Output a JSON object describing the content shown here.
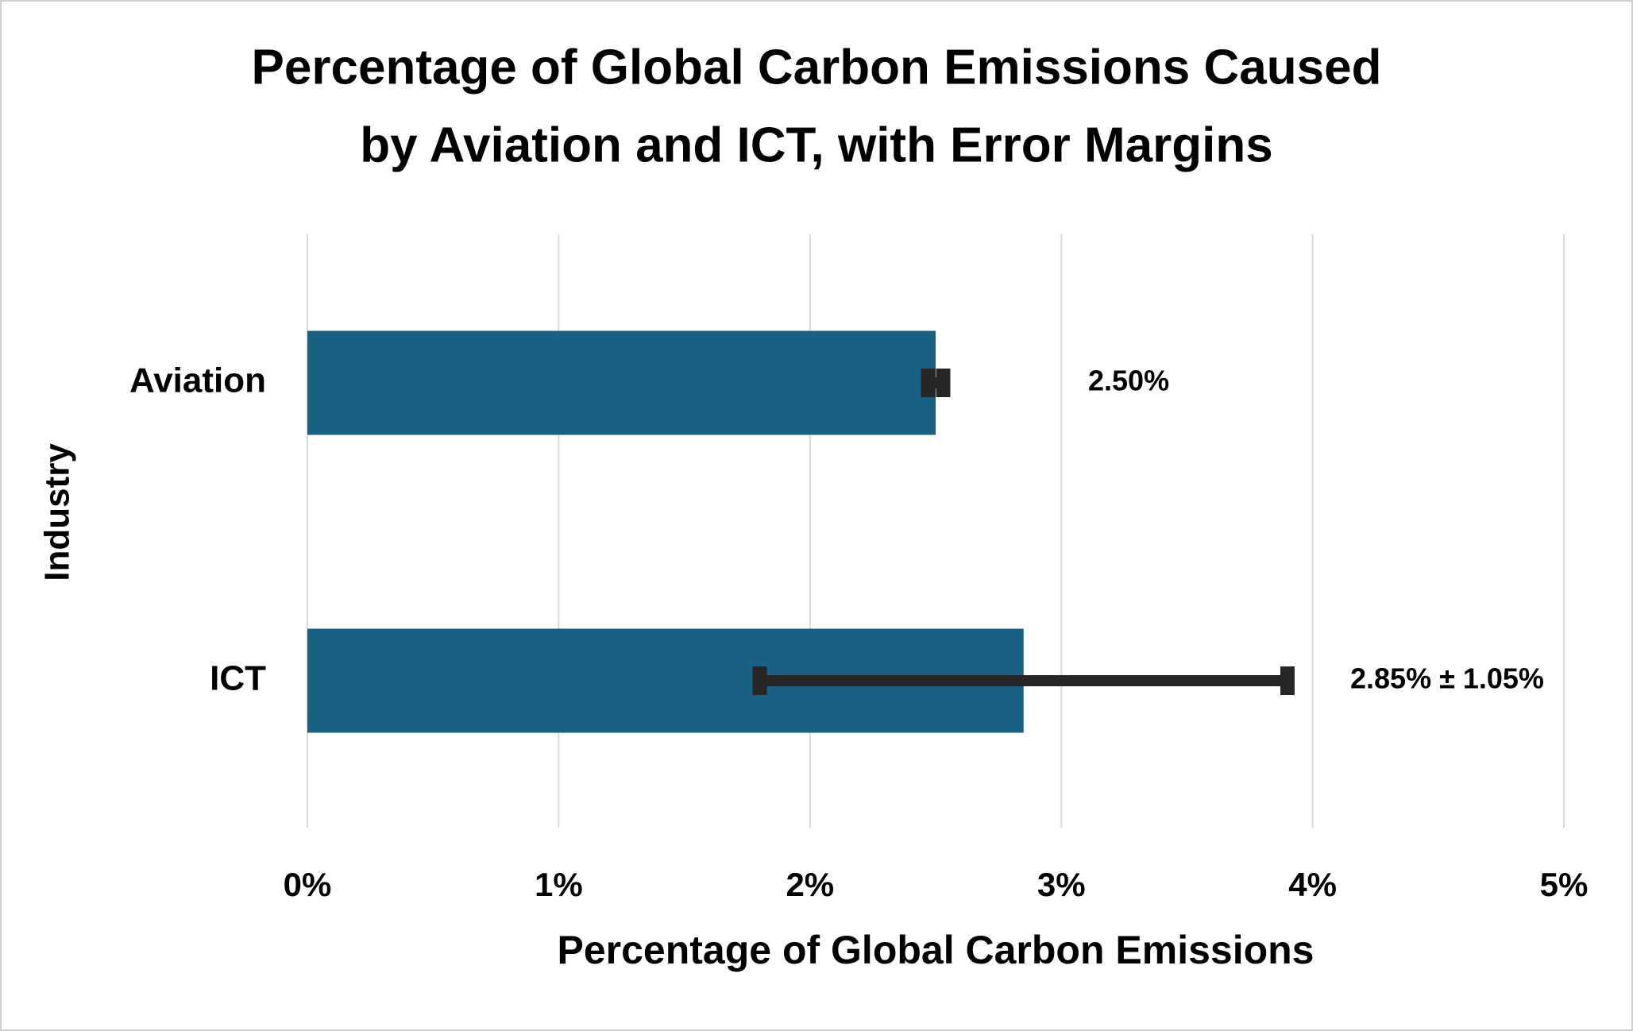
{
  "chart_data": {
    "type": "bar",
    "orientation": "horizontal",
    "title": "Percentage of Global Carbon Emissions Caused",
    "subtitle": "by Aviation and ICT, with Error Margins",
    "x_label": "Percentage of Global Carbon Emissions",
    "y_label": "Industry",
    "categories": [
      "Aviation",
      "ICT"
    ],
    "values": [
      2.5,
      2.85
    ],
    "errors": [
      0.03,
      1.05
    ],
    "value_labels": [
      "2.50%",
      "2.85% ± 1.05%"
    ],
    "color": "#186183",
    "error_color": "#262626",
    "xlim": [
      0,
      5
    ],
    "xticks": [
      {
        "value": 0,
        "label": "0%"
      },
      {
        "value": 1,
        "label": "1%"
      },
      {
        "value": 2,
        "label": "2%"
      },
      {
        "value": 3,
        "label": "3%"
      },
      {
        "value": 4,
        "label": "4%"
      },
      {
        "value": 5,
        "label": "5%"
      }
    ],
    "grid": true
  }
}
